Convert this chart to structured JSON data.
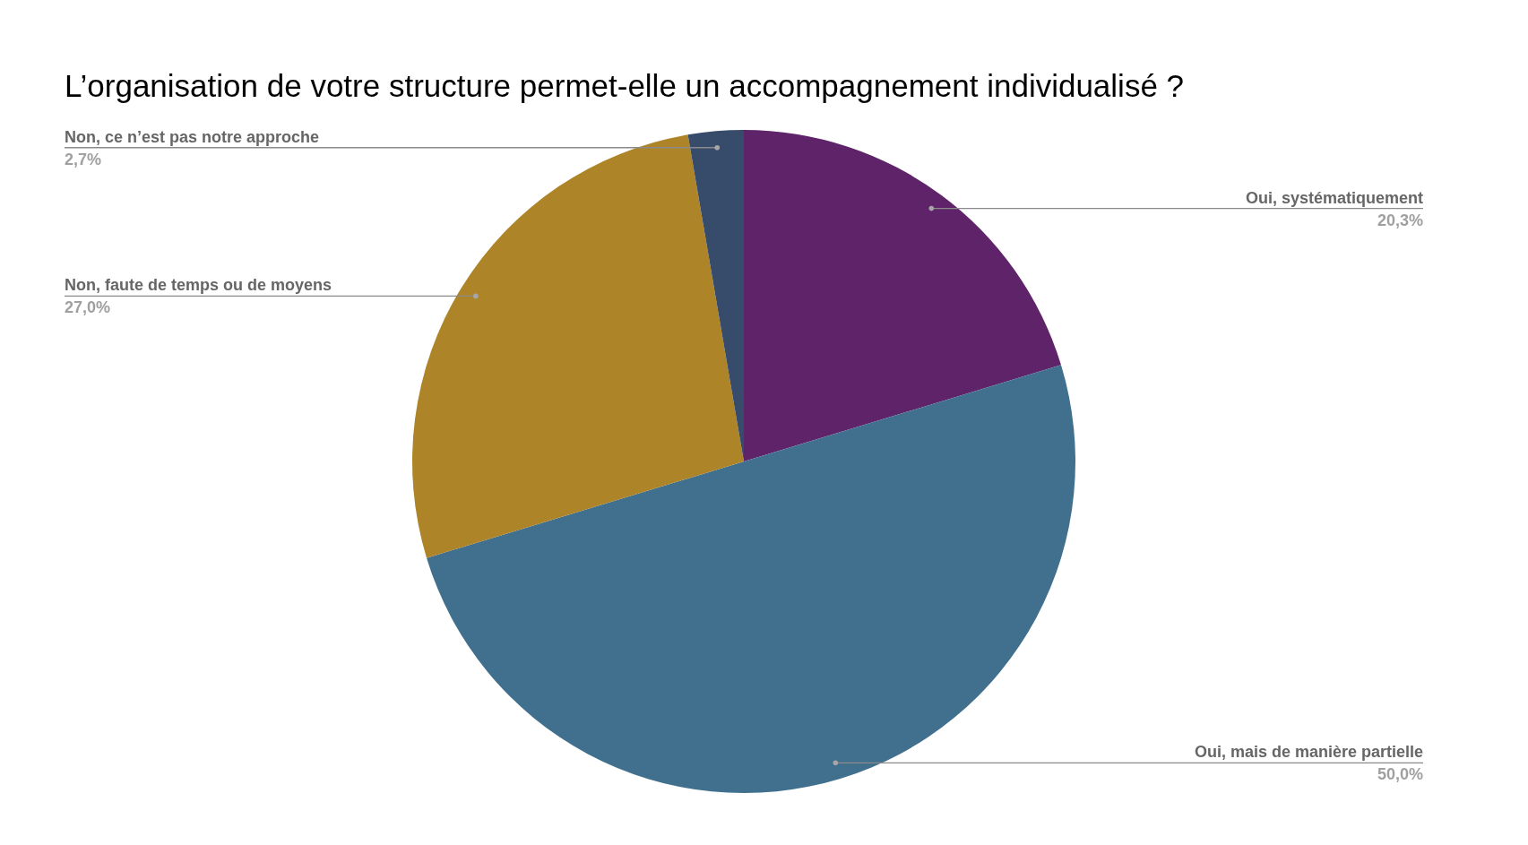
{
  "chart_data": {
    "type": "pie",
    "title": "L’organisation de votre structure permet-elle un accompagnement individualisé ?",
    "categories": [
      "Oui, systématiquement",
      "Oui, mais de manière partielle",
      "Non, faute de temps ou de moyens",
      "Non, ce n’est pas notre approche"
    ],
    "values": [
      20.3,
      50.0,
      27.0,
      2.7
    ],
    "colors": [
      "#5f2369",
      "#41708f",
      "#ad8427",
      "#374b6a"
    ],
    "value_labels": [
      "20,3%",
      "50,0%",
      "27,0%",
      "2,7%"
    ]
  }
}
